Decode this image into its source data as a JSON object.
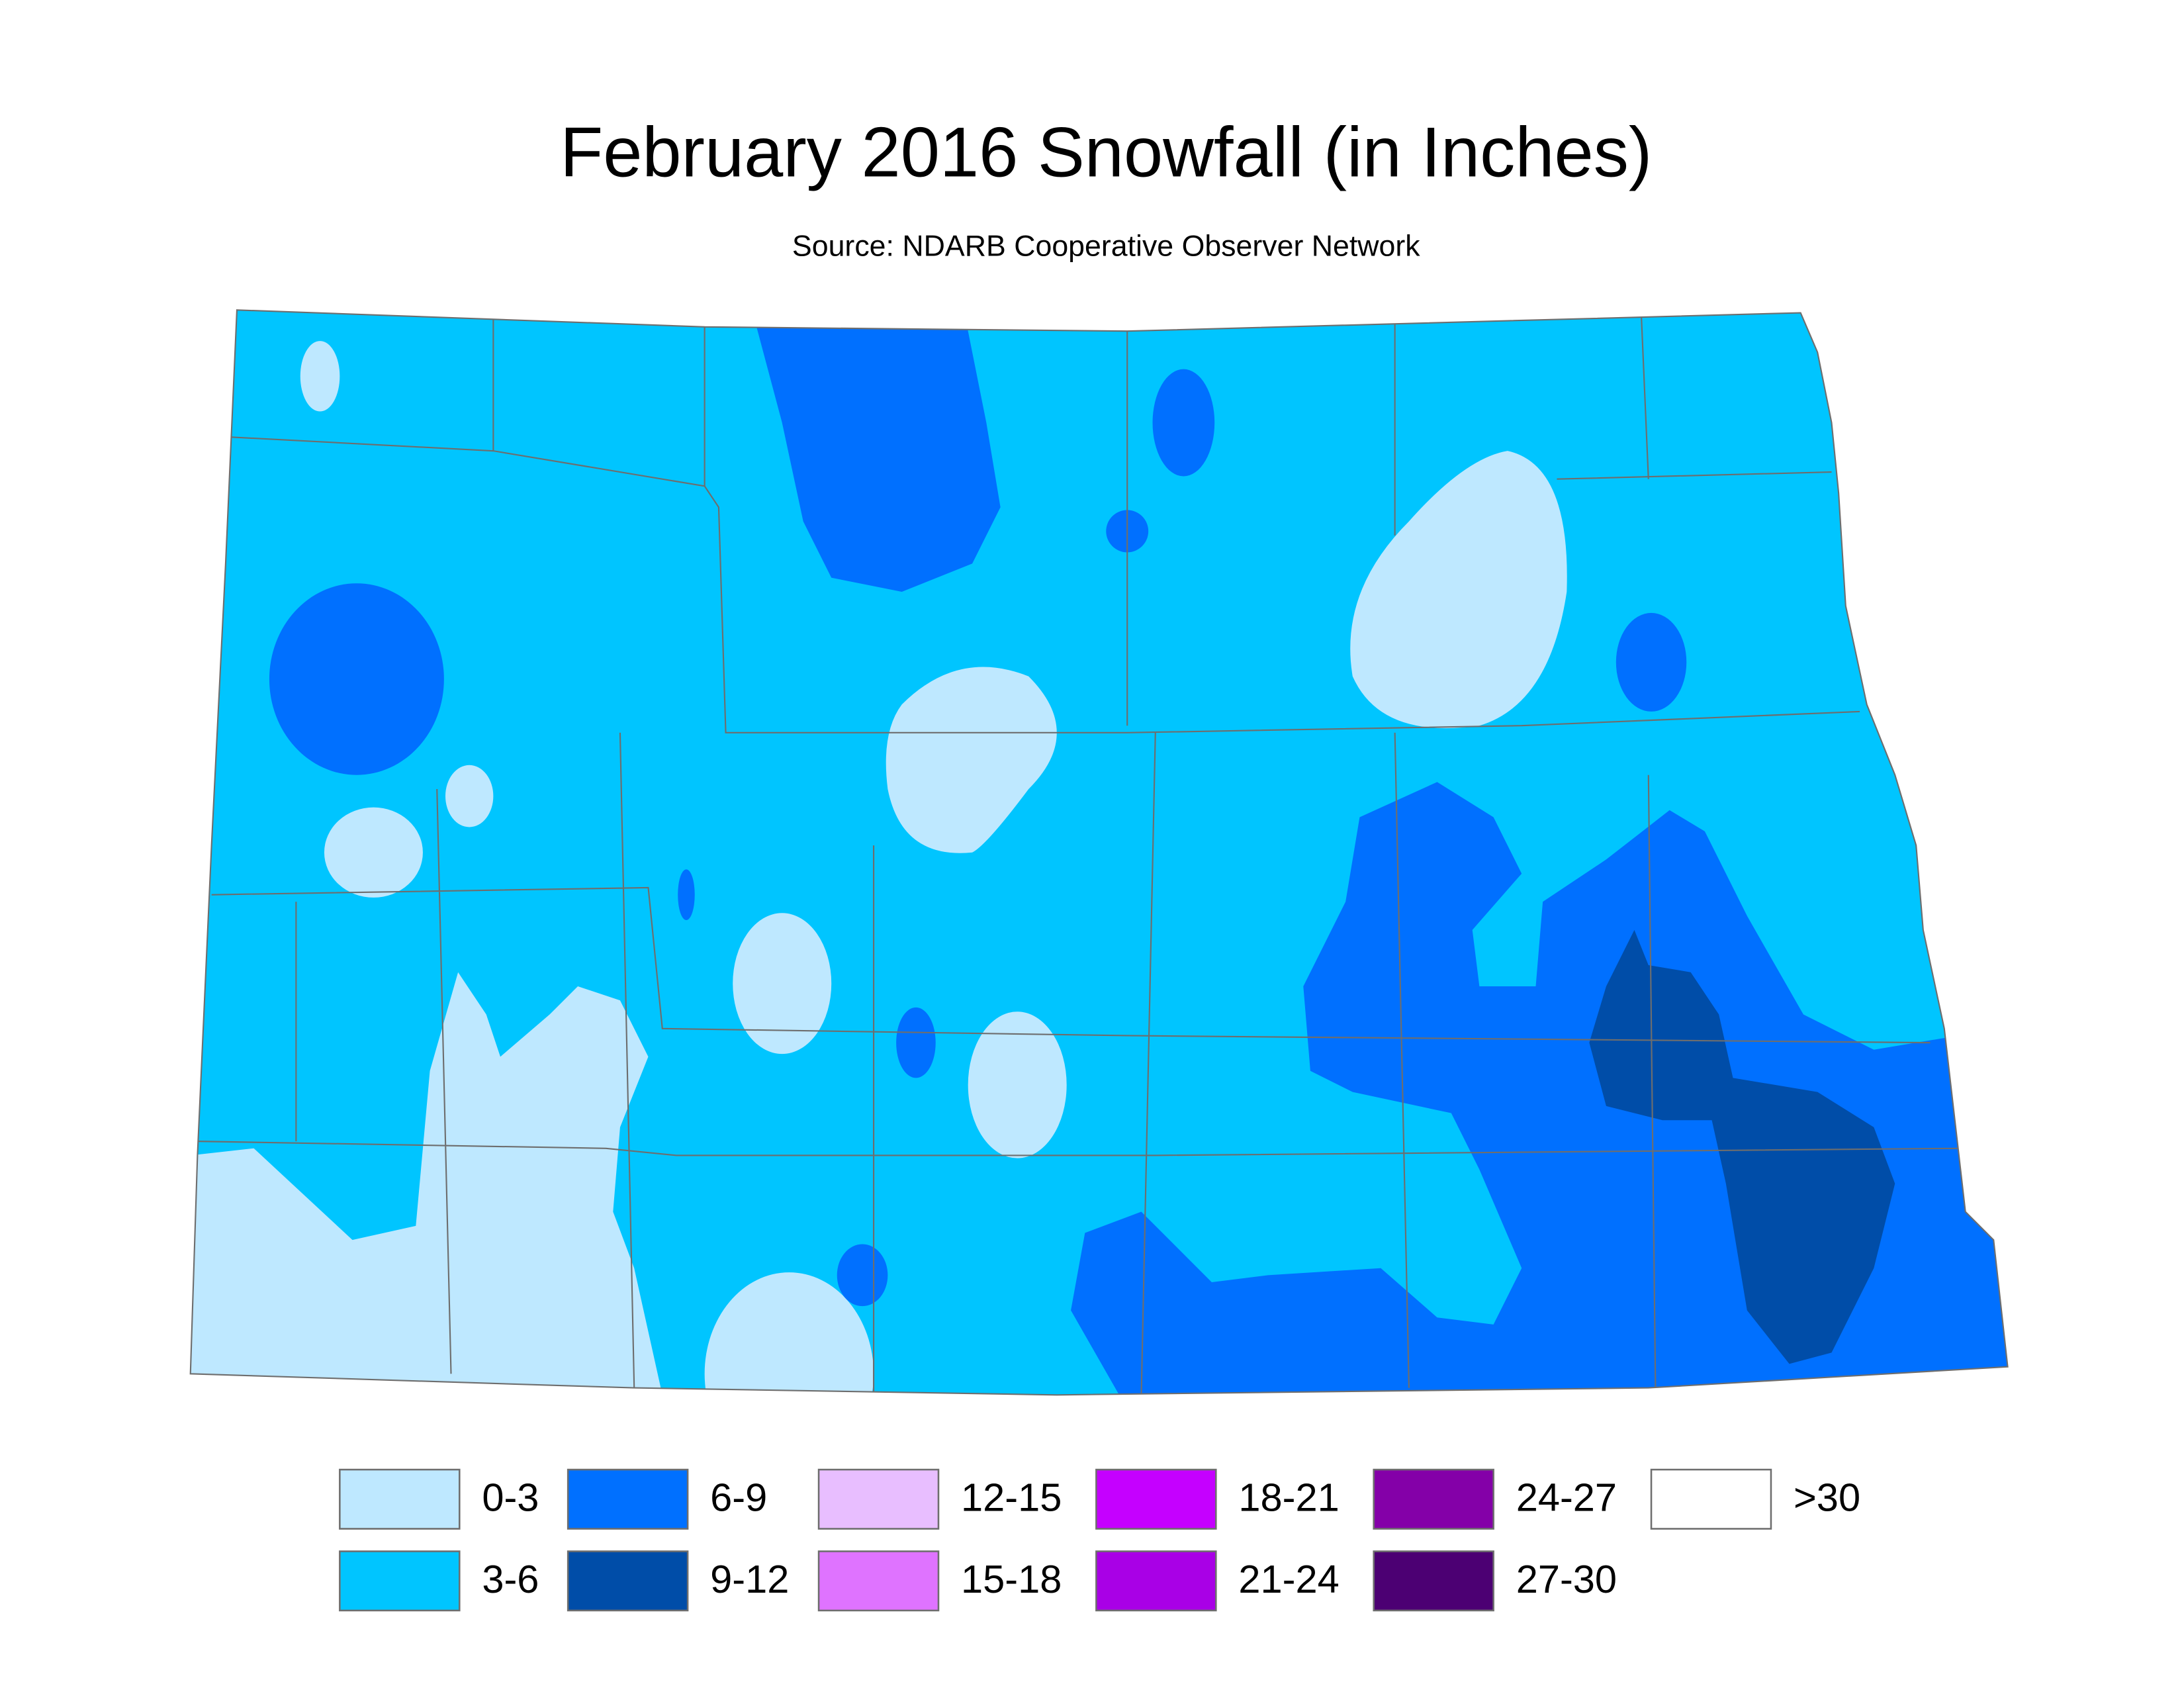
{
  "title": "February 2016 Snowfall (in Inches)",
  "subtitle": "Source: NDARB Cooperative Observer Network",
  "legend": [
    {
      "label": "0-3",
      "color": "#bee8ff"
    },
    {
      "label": "3-6",
      "color": "#00c5ff"
    },
    {
      "label": "6-9",
      "color": "#0070ff"
    },
    {
      "label": "9-12",
      "color": "#004da8"
    },
    {
      "label": "12-15",
      "color": "#e8beff"
    },
    {
      "label": "15-18",
      "color": "#df73ff"
    },
    {
      "label": "18-21",
      "color": "#c500ff"
    },
    {
      "label": "21-24",
      "color": "#a900e6"
    },
    {
      "label": "24-27",
      "color": "#8400a8"
    },
    {
      "label": "27-30",
      "color": "#4c0073"
    },
    {
      "label": ">30",
      "color": "#ffffff"
    }
  ]
}
